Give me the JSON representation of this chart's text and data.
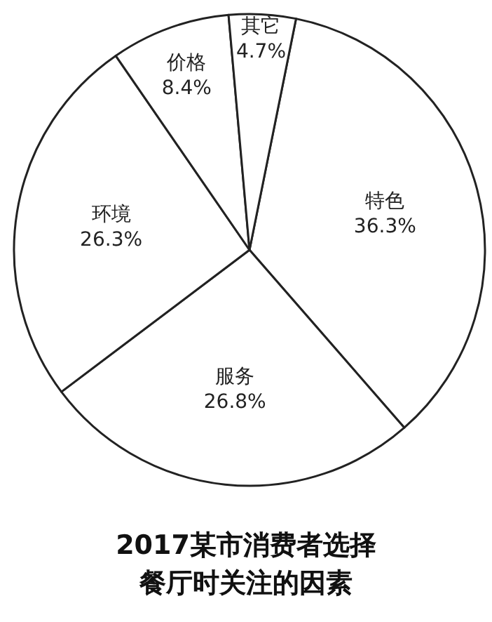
{
  "chart_data": {
    "type": "pie",
    "title": "2017某市消费者选择餐厅时关注的因素",
    "categories": [
      "特色",
      "服务",
      "环境",
      "价格",
      "其它"
    ],
    "values": [
      36.3,
      26.8,
      26.3,
      8.4,
      4.7
    ],
    "value_labels": [
      "36.3%",
      "26.8%",
      "26.3%",
      "8.4%",
      "4.7%"
    ],
    "colors": [
      "#ffffff",
      "#ffffff",
      "#ffffff",
      "#ffffff",
      "#ffffff"
    ],
    "legend": false
  }
}
